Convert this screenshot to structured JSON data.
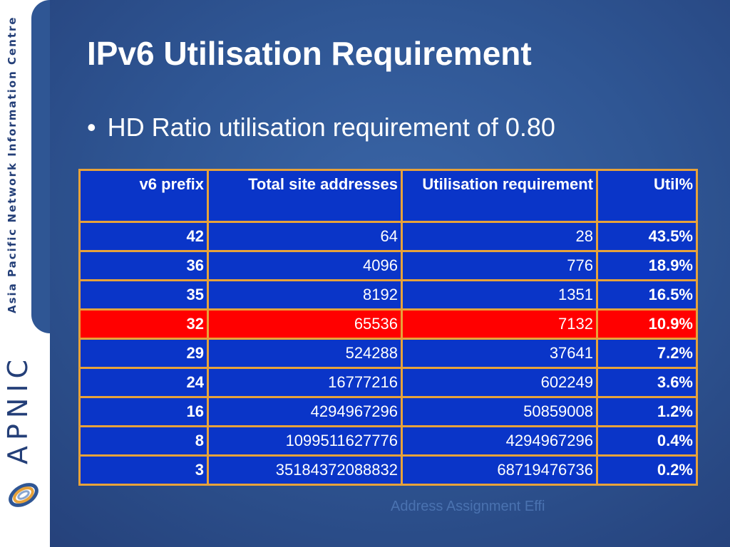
{
  "sidebar": {
    "org_name": "Asia Pacific Network Information Centre",
    "brand": "APNIC"
  },
  "title": "IPv6 Utilisation Requirement",
  "bullet": "HD Ratio utilisation requirement of 0.80",
  "watermark": "Address Assignment Effi",
  "table": {
    "headers": [
      "v6 prefix",
      "Total site addresses",
      "Utilisation requirement",
      "Util%"
    ],
    "highlight_color": "#ff0000",
    "rows": [
      {
        "prefix": "42",
        "total": "64",
        "req": "28",
        "util": "43.5%",
        "highlight": false
      },
      {
        "prefix": "36",
        "total": "4096",
        "req": "776",
        "util": "18.9%",
        "highlight": false
      },
      {
        "prefix": "35",
        "total": "8192",
        "req": "1351",
        "util": "16.5%",
        "highlight": false
      },
      {
        "prefix": "32",
        "total": "65536",
        "req": "7132",
        "util": "10.9%",
        "highlight": true
      },
      {
        "prefix": "29",
        "total": "524288",
        "req": "37641",
        "util": "7.2%",
        "highlight": false
      },
      {
        "prefix": "24",
        "total": "16777216",
        "req": "602249",
        "util": "3.6%",
        "highlight": false
      },
      {
        "prefix": "16",
        "total": "4294967296",
        "req": "50859008",
        "util": "1.2%",
        "highlight": false
      },
      {
        "prefix": "8",
        "total": "1099511627776",
        "req": "4294967296",
        "util": "0.4%",
        "highlight": false
      },
      {
        "prefix": "3",
        "total": "35184372088832",
        "req": "68719476736",
        "util": "0.2%",
        "highlight": false
      }
    ]
  }
}
